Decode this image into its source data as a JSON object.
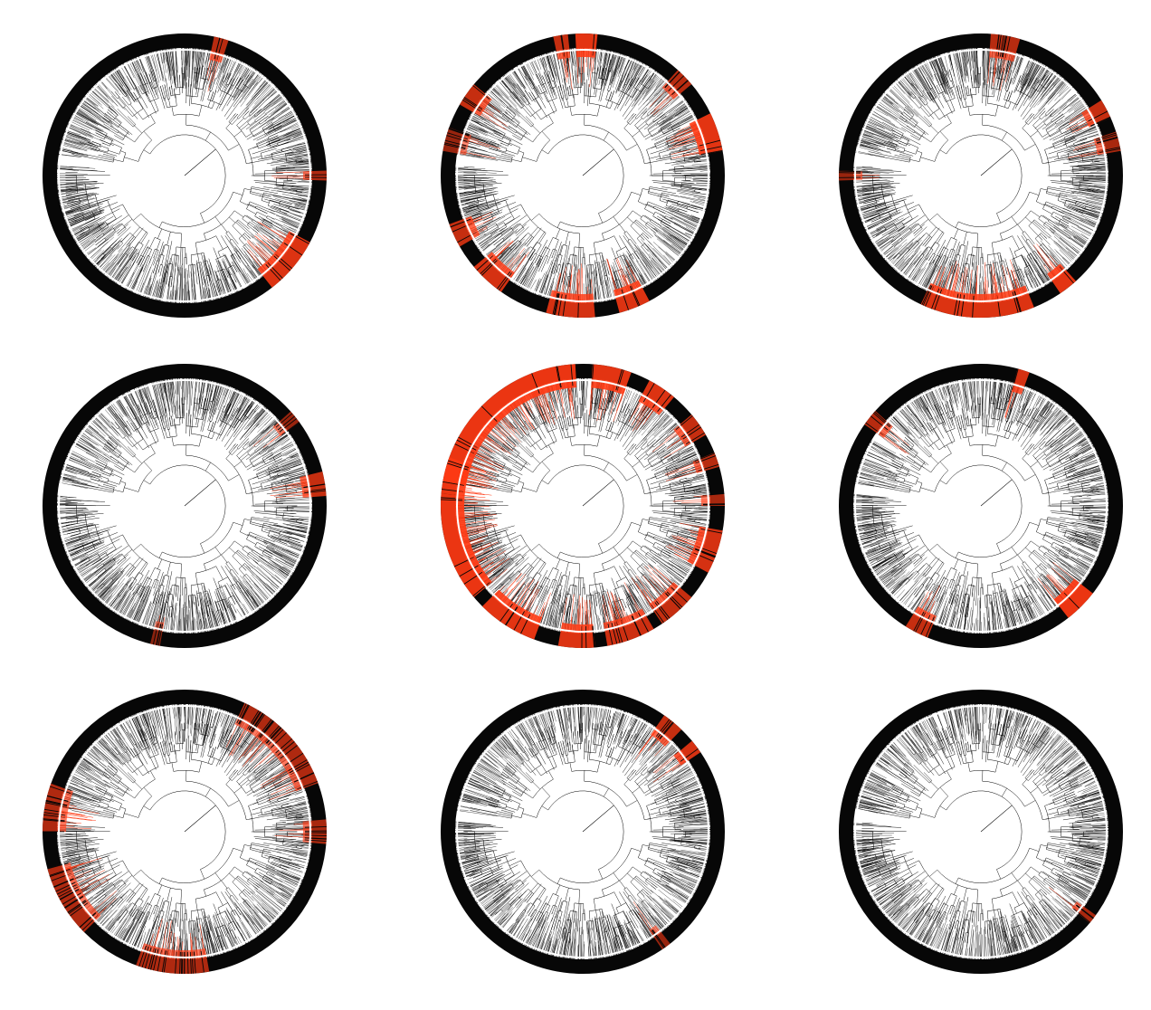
{
  "colors": {
    "background": "#ffffff",
    "tree": "#000000",
    "ring_base": "#070707",
    "separator": "#ffffff",
    "highlight": "#ff3a14"
  },
  "panels": [
    {
      "id": "panel-1",
      "highlights": [
        [
          -78,
          -72,
          0.6
        ],
        [
          -2,
          2,
          0.55
        ],
        [
          28,
          52,
          0.85
        ]
      ]
    },
    {
      "id": "panel-2",
      "highlights": [
        [
          -102,
          -96,
          0.7
        ],
        [
          -93,
          -84,
          0.9
        ],
        [
          -48,
          -40,
          0.6
        ],
        [
          -26,
          -10,
          0.9
        ],
        [
          62,
          75,
          0.85
        ],
        [
          85,
          105,
          0.8
        ],
        [
          125,
          140,
          0.8
        ],
        [
          150,
          160,
          0.7
        ],
        [
          -150,
          -140,
          0.7
        ],
        [
          -170,
          -160,
          0.4
        ]
      ]
    },
    {
      "id": "panel-3",
      "highlights": [
        [
          -86,
          -74,
          0.6
        ],
        [
          -32,
          -24,
          0.7
        ],
        [
          -18,
          -10,
          0.5
        ],
        [
          48,
          56,
          0.9
        ],
        [
          68,
          115,
          0.85
        ],
        [
          178,
          182,
          0.4
        ]
      ]
    },
    {
      "id": "panel-4",
      "highlights": [
        [
          -14,
          -4,
          0.7
        ],
        [
          -42,
          -36,
          0.4
        ],
        [
          100,
          104,
          0.3
        ]
      ]
    },
    {
      "id": "panel-5",
      "highlights": [
        [
          -90,
          -92,
          0.0
        ],
        [
          -175,
          -93,
          0.95
        ],
        [
          -86,
          -70,
          0.9
        ],
        [
          -62,
          -50,
          0.85
        ],
        [
          -40,
          -30,
          0.7
        ],
        [
          -22,
          -16,
          0.6
        ],
        [
          -5,
          0,
          0.5
        ],
        [
          10,
          28,
          0.8
        ],
        [
          40,
          56,
          0.7
        ],
        [
          60,
          80,
          0.75
        ],
        [
          85,
          100,
          0.85
        ],
        [
          110,
          135,
          0.9
        ],
        [
          140,
          185,
          0.95
        ],
        [
          190,
          200,
          0.85
        ]
      ]
    },
    {
      "id": "panel-6",
      "highlights": [
        [
          -75,
          -70,
          0.8
        ],
        [
          -145,
          -138,
          0.6
        ],
        [
          38,
          52,
          0.95
        ],
        [
          112,
          122,
          0.7
        ]
      ]
    },
    {
      "id": "panel-7",
      "highlights": [
        [
          -65,
          -20,
          0.55
        ],
        [
          -5,
          5,
          0.5
        ],
        [
          80,
          110,
          0.55
        ],
        [
          135,
          165,
          0.55
        ],
        [
          180,
          200,
          0.55
        ]
      ]
    },
    {
      "id": "panel-8",
      "highlights": [
        [
          -55,
          -46,
          0.7
        ],
        [
          -40,
          -34,
          0.8
        ],
        [
          52,
          56,
          0.4
        ]
      ]
    },
    {
      "id": "panel-9",
      "highlights": [
        [
          36,
          40,
          0.5
        ]
      ]
    }
  ]
}
